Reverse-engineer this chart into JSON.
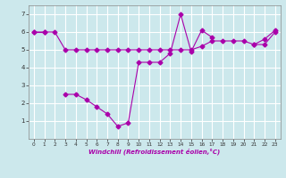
{
  "xlabel": "Windchill (Refroidissement éolien,°C)",
  "background_color": "#cce8ec",
  "grid_color": "#ffffff",
  "line_color": "#aa00aa",
  "line1_x": [
    0,
    1,
    2,
    3,
    4,
    5,
    6,
    7,
    8,
    9,
    10,
    11,
    12,
    13,
    14,
    15,
    16,
    17,
    18,
    19,
    20,
    21,
    22,
    23
  ],
  "line1_y": [
    6.0,
    6.0,
    6.0,
    5.0,
    5.0,
    5.0,
    5.0,
    5.0,
    5.0,
    5.0,
    5.0,
    5.0,
    5.0,
    5.0,
    5.0,
    5.0,
    5.2,
    5.5,
    5.5,
    5.5,
    5.5,
    5.3,
    5.3,
    6.0
  ],
  "line2_segments": [
    {
      "x": [
        0,
        1
      ],
      "y": [
        6.0,
        6.0
      ]
    },
    {
      "x": [
        3,
        4,
        5,
        6,
        7,
        8,
        9,
        10,
        11,
        12,
        13,
        14,
        15,
        16,
        17
      ],
      "y": [
        2.5,
        2.5,
        2.2,
        1.8,
        1.4,
        0.7,
        0.9,
        4.3,
        4.3,
        4.3,
        4.8,
        7.0,
        4.9,
        6.1,
        5.7
      ]
    },
    {
      "x": [
        21,
        22,
        23
      ],
      "y": [
        5.3,
        5.6,
        6.1
      ]
    }
  ],
  "ylim": [
    0,
    7.5
  ],
  "xlim": [
    -0.5,
    23.5
  ],
  "yticks": [
    1,
    2,
    3,
    4,
    5,
    6,
    7
  ],
  "xticks": [
    0,
    1,
    2,
    3,
    4,
    5,
    6,
    7,
    8,
    9,
    10,
    11,
    12,
    13,
    14,
    15,
    16,
    17,
    18,
    19,
    20,
    21,
    22,
    23
  ],
  "marker": "D",
  "marker_size": 2.5,
  "line_width": 0.8
}
